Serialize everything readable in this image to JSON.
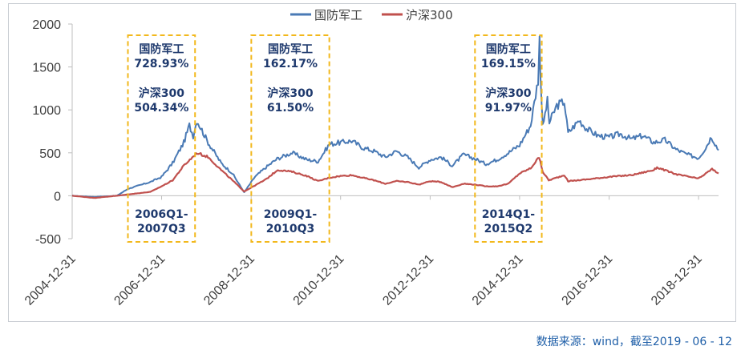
{
  "chart_data": {
    "type": "line",
    "title": "",
    "xlabel": "",
    "ylabel": "",
    "ylim": [
      -500,
      2000
    ],
    "yticks": [
      -500,
      0,
      500,
      1000,
      1500,
      2000
    ],
    "xticks": [
      "2004-12-31",
      "2006-12-31",
      "2008-12-31",
      "2010-12-31",
      "2012-12-31",
      "2014-12-31",
      "2016-12-31",
      "2018-12-31"
    ],
    "xrange": [
      "2004-12-31",
      "2019-06-12"
    ],
    "legend_position": "top",
    "grid": false,
    "series": [
      {
        "name": "国防军工",
        "color": "#4a7ab5",
        "points": [
          [
            "2004-12-31",
            0
          ],
          [
            "2005-06-30",
            -15
          ],
          [
            "2005-12-31",
            0
          ],
          [
            "2006-03-31",
            80
          ],
          [
            "2006-06-30",
            120
          ],
          [
            "2006-09-30",
            160
          ],
          [
            "2006-12-31",
            220
          ],
          [
            "2007-03-31",
            380
          ],
          [
            "2007-06-30",
            620
          ],
          [
            "2007-08-15",
            820
          ],
          [
            "2007-09-15",
            700
          ],
          [
            "2007-10-15",
            880
          ],
          [
            "2008-01-15",
            620
          ],
          [
            "2008-04-30",
            380
          ],
          [
            "2008-07-31",
            260
          ],
          [
            "2008-11-04",
            40
          ],
          [
            "2009-01-31",
            220
          ],
          [
            "2009-04-30",
            330
          ],
          [
            "2009-07-31",
            430
          ],
          [
            "2009-11-30",
            500
          ],
          [
            "2010-03-31",
            420
          ],
          [
            "2010-06-30",
            400
          ],
          [
            "2010-09-30",
            600
          ],
          [
            "2010-12-31",
            620
          ],
          [
            "2011-03-31",
            640
          ],
          [
            "2011-06-30",
            560
          ],
          [
            "2011-09-30",
            520
          ],
          [
            "2011-12-31",
            450
          ],
          [
            "2012-03-31",
            520
          ],
          [
            "2012-06-30",
            450
          ],
          [
            "2012-09-30",
            330
          ],
          [
            "2012-12-31",
            420
          ],
          [
            "2013-03-31",
            450
          ],
          [
            "2013-06-30",
            350
          ],
          [
            "2013-09-30",
            480
          ],
          [
            "2013-12-31",
            430
          ],
          [
            "2014-03-31",
            370
          ],
          [
            "2014-06-30",
            420
          ],
          [
            "2014-09-30",
            500
          ],
          [
            "2014-12-31",
            590
          ],
          [
            "2015-03-31",
            820
          ],
          [
            "2015-05-31",
            1350
          ],
          [
            "2015-06-12",
            1820
          ],
          [
            "2015-06-20",
            1400
          ],
          [
            "2015-07-08",
            800
          ],
          [
            "2015-08-15",
            1100
          ],
          [
            "2015-08-31",
            850
          ],
          [
            "2015-10-31",
            1050
          ],
          [
            "2015-12-31",
            1100
          ],
          [
            "2016-01-31",
            730
          ],
          [
            "2016-04-30",
            880
          ],
          [
            "2016-06-30",
            780
          ],
          [
            "2016-09-30",
            700
          ],
          [
            "2016-12-31",
            680
          ],
          [
            "2017-03-31",
            720
          ],
          [
            "2017-06-30",
            660
          ],
          [
            "2017-09-30",
            700
          ],
          [
            "2017-12-31",
            620
          ],
          [
            "2018-03-31",
            650
          ],
          [
            "2018-06-30",
            540
          ],
          [
            "2018-09-30",
            480
          ],
          [
            "2018-12-31",
            440
          ],
          [
            "2019-02-28",
            560
          ],
          [
            "2019-04-15",
            690
          ],
          [
            "2019-06-12",
            530
          ]
        ]
      },
      {
        "name": "沪深300",
        "color": "#c0504d",
        "points": [
          [
            "2004-12-31",
            0
          ],
          [
            "2005-06-30",
            -25
          ],
          [
            "2005-12-31",
            0
          ],
          [
            "2006-03-31",
            15
          ],
          [
            "2006-06-30",
            30
          ],
          [
            "2006-09-30",
            45
          ],
          [
            "2006-12-31",
            110
          ],
          [
            "2007-03-31",
            180
          ],
          [
            "2007-06-30",
            350
          ],
          [
            "2007-10-16",
            500
          ],
          [
            "2008-01-15",
            450
          ],
          [
            "2008-04-30",
            300
          ],
          [
            "2008-07-31",
            180
          ],
          [
            "2008-11-04",
            50
          ],
          [
            "2009-01-31",
            120
          ],
          [
            "2009-04-30",
            190
          ],
          [
            "2009-08-04",
            300
          ],
          [
            "2009-11-30",
            280
          ],
          [
            "2010-03-31",
            230
          ],
          [
            "2010-06-30",
            170
          ],
          [
            "2010-09-30",
            210
          ],
          [
            "2010-12-31",
            230
          ],
          [
            "2011-03-31",
            240
          ],
          [
            "2011-06-30",
            210
          ],
          [
            "2011-09-30",
            180
          ],
          [
            "2011-12-31",
            140
          ],
          [
            "2012-03-31",
            170
          ],
          [
            "2012-06-30",
            160
          ],
          [
            "2012-09-30",
            130
          ],
          [
            "2012-12-31",
            170
          ],
          [
            "2013-03-31",
            160
          ],
          [
            "2013-06-30",
            100
          ],
          [
            "2013-09-30",
            140
          ],
          [
            "2013-12-31",
            130
          ],
          [
            "2014-03-31",
            110
          ],
          [
            "2014-06-30",
            110
          ],
          [
            "2014-09-30",
            140
          ],
          [
            "2014-12-31",
            260
          ],
          [
            "2015-03-31",
            320
          ],
          [
            "2015-06-08",
            450
          ],
          [
            "2015-07-08",
            280
          ],
          [
            "2015-08-26",
            180
          ],
          [
            "2015-12-31",
            240
          ],
          [
            "2016-01-31",
            170
          ],
          [
            "2016-06-30",
            190
          ],
          [
            "2016-12-31",
            220
          ],
          [
            "2017-06-30",
            240
          ],
          [
            "2017-12-31",
            300
          ],
          [
            "2018-01-26",
            330
          ],
          [
            "2018-06-30",
            250
          ],
          [
            "2018-12-31",
            200
          ],
          [
            "2019-03-31",
            290
          ],
          [
            "2019-04-20",
            310
          ],
          [
            "2019-06-12",
            260
          ]
        ]
      }
    ],
    "annotations": [
      {
        "box": [
          "2006-03-31",
          "2007-09-30"
        ],
        "industry_label": "国防军工",
        "industry_value": "728.93%",
        "index_label": "沪深300",
        "index_value": "504.34%",
        "period_line1": "2006Q1-",
        "period_line2": "2007Q3"
      },
      {
        "box": [
          "2009-01-01",
          "2010-09-30"
        ],
        "industry_label": "国防军工",
        "industry_value": "162.17%",
        "index_label": "沪深300",
        "index_value": "61.50%",
        "period_line1": "2009Q1-",
        "period_line2": "2010Q3"
      },
      {
        "box": [
          "2014-01-01",
          "2015-06-30"
        ],
        "industry_label": "国防军工",
        "industry_value": "169.15%",
        "index_label": "沪深300",
        "index_value": "91.97%",
        "period_line1": "2014Q1-",
        "period_line2": "2015Q2"
      }
    ]
  },
  "source_note": "数据来源：wind，截至2019 - 06 - 12"
}
